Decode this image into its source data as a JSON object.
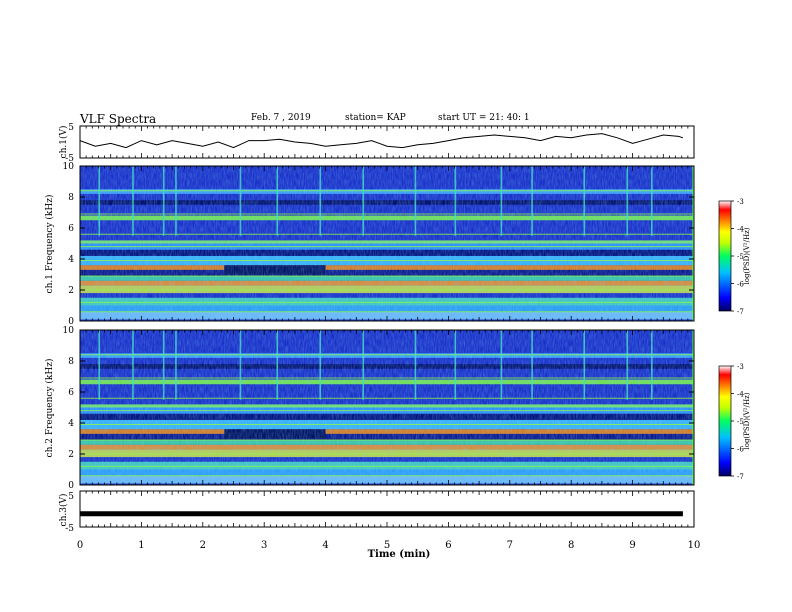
{
  "header": {
    "title": "VLF Spectra",
    "date": "Feb. 7 , 2019",
    "station": "station= KAP",
    "start": "start  UT  =   21: 40: 1"
  },
  "chart_data": [
    {
      "type": "line",
      "name": "ch1-voltage",
      "ylabel": "ch.1(V)",
      "ylim": [
        -5,
        5
      ],
      "ytick_labels": [
        "5",
        "-5"
      ],
      "x": [
        0.0,
        0.25,
        0.5,
        0.75,
        1.0,
        1.25,
        1.5,
        1.75,
        2.0,
        2.25,
        2.5,
        2.75,
        3.0,
        3.25,
        3.5,
        3.75,
        4.0,
        4.25,
        4.5,
        4.75,
        5.0,
        5.25,
        5.5,
        5.75,
        6.0,
        6.25,
        6.5,
        6.75,
        7.0,
        7.25,
        7.5,
        7.75,
        8.0,
        8.25,
        8.5,
        8.75,
        9.0,
        9.25,
        9.5,
        9.75,
        9.82
      ],
      "y": [
        0.5,
        -1.5,
        -0.5,
        -2.0,
        0.5,
        -1.0,
        0.5,
        -0.5,
        -1.5,
        0.0,
        -2.0,
        0.5,
        0.5,
        1.0,
        0.0,
        -0.5,
        -1.5,
        -1.0,
        -0.5,
        0.5,
        -1.5,
        -2.0,
        -1.0,
        -0.5,
        0.5,
        1.5,
        2.0,
        2.5,
        2.0,
        1.5,
        0.5,
        2.0,
        1.5,
        2.5,
        3.0,
        1.5,
        -0.5,
        1.0,
        2.5,
        2.0,
        1.5
      ]
    },
    {
      "type": "heatmap",
      "name": "ch1-spectrogram",
      "ylabel": "ch.1 Frequency (kHz)",
      "ylim": [
        0,
        10
      ],
      "xlim": [
        0,
        10
      ],
      "yticks": [
        "0",
        "2",
        "4",
        "6",
        "8",
        "10"
      ],
      "colorbar": {
        "label": "log(PSD)(V²/Hz)",
        "range": [
          -7,
          -3
        ],
        "ticks": [
          "-3",
          "-4",
          "-5",
          "-6",
          "-7"
        ]
      }
    },
    {
      "type": "heatmap",
      "name": "ch2-spectrogram",
      "ylabel": "ch.2 Frequency (kHz)",
      "ylim": [
        0,
        10
      ],
      "xlim": [
        0,
        10
      ],
      "yticks": [
        "0",
        "2",
        "4",
        "6",
        "8",
        "10"
      ],
      "colorbar": {
        "label": "log(PSD)(V²/Hz)",
        "range": [
          -7,
          -3
        ],
        "ticks": [
          "-3",
          "-4",
          "-5",
          "-6",
          "-7"
        ]
      }
    },
    {
      "type": "line",
      "name": "ch3-voltage",
      "ylabel": "ch.3(V)",
      "ylim": [
        -5,
        5
      ],
      "ytick_labels": [
        "5",
        "-5"
      ],
      "x": [
        0,
        9.82
      ],
      "y": [
        -1.5,
        -1.5
      ]
    }
  ],
  "time_axis": {
    "xlabel": "Time  (min)",
    "ticks": [
      "0",
      "1",
      "2",
      "3",
      "4",
      "5",
      "6",
      "7",
      "8",
      "9",
      "10"
    ]
  },
  "colors": {
    "spectrum_background": "#1a2fc8",
    "colormap": [
      "#000060",
      "#0000ff",
      "#00c0ff",
      "#00ff60",
      "#c0ff00",
      "#ffff00",
      "#ff8000",
      "#ff0000",
      "#ffffff"
    ]
  }
}
